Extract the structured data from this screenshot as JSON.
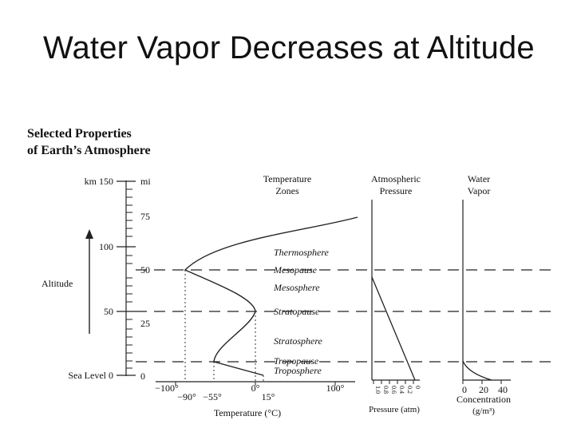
{
  "slide": {
    "title": "Water Vapor Decreases at Altitude"
  },
  "figure": {
    "heading_line1": "Selected Properties",
    "heading_line2": "of Earth’s Atmosphere",
    "altitude_label": "Altitude",
    "km_unit": "km",
    "mi_unit": "mi",
    "km_ticks": [
      {
        "value": "150",
        "label": "km 150"
      },
      {
        "value": "100",
        "label": "100"
      },
      {
        "value": "50",
        "label": "50"
      },
      {
        "value": "0",
        "label": "Sea Level 0"
      }
    ],
    "mi_ticks": [
      "75",
      "50",
      "25",
      "0"
    ],
    "temperature_panel": {
      "header_line1": "Temperature",
      "header_line2": "Zones",
      "zones": [
        "Thermosphere",
        "Mesopause",
        "Mesosphere",
        "Stratopause",
        "Stratosphere",
        "Tropopause",
        "Troposphere"
      ],
      "axis_ticks_upper": [
        "−100°",
        "0°",
        "100°"
      ],
      "axis_ticks_lower": [
        "−90°",
        "−55°",
        "15°"
      ],
      "axis_label": "Temperature (°C)"
    },
    "pressure_panel": {
      "header_line1": "Atmospheric",
      "header_line2": "Pressure",
      "tick_labels": [
        "1.0",
        "0.8",
        "0.6",
        "0.4",
        "0.2",
        "0"
      ],
      "axis_label": "Pressure (atm)"
    },
    "vapor_panel": {
      "header_line1": "Water",
      "header_line2": "Vapor",
      "tick_labels": [
        "0",
        "20",
        "40"
      ],
      "axis_label_line1": "Concentration",
      "axis_label_line2": "(g/m³)"
    }
  }
}
